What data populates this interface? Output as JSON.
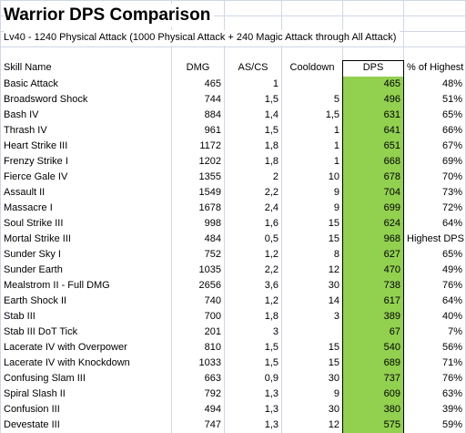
{
  "title": "Warrior DPS Comparison",
  "subtitle": "Lv40 - 1240 Physical Attack (1000 Physical Attack + 240 Magic Attack through All Attack)",
  "columns": {
    "skill": "Skill Name",
    "dmg": "DMG",
    "ascs": "AS/CS",
    "cooldown": "Cooldown",
    "dps": "DPS",
    "pct": "% of Highest"
  },
  "highlight_color": "#92d050",
  "rows": [
    {
      "skill": "Basic Attack",
      "dmg": "465",
      "ascs": "1",
      "cooldown": "",
      "dps": "465",
      "pct": "48%"
    },
    {
      "skill": "Broadsword Shock",
      "dmg": "744",
      "ascs": "1,5",
      "cooldown": "5",
      "dps": "496",
      "pct": "51%"
    },
    {
      "skill": "Bash IV",
      "dmg": "884",
      "ascs": "1,4",
      "cooldown": "1,5",
      "dps": "631",
      "pct": "65%"
    },
    {
      "skill": "Thrash IV",
      "dmg": "961",
      "ascs": "1,5",
      "cooldown": "1",
      "dps": "641",
      "pct": "66%"
    },
    {
      "skill": "Heart Strike III",
      "dmg": "1172",
      "ascs": "1,8",
      "cooldown": "1",
      "dps": "651",
      "pct": "67%"
    },
    {
      "skill": "Frenzy Strike I",
      "dmg": "1202",
      "ascs": "1,8",
      "cooldown": "1",
      "dps": "668",
      "pct": "69%"
    },
    {
      "skill": "Fierce Gale IV",
      "dmg": "1355",
      "ascs": "2",
      "cooldown": "10",
      "dps": "678",
      "pct": "70%"
    },
    {
      "skill": "Assault II",
      "dmg": "1549",
      "ascs": "2,2",
      "cooldown": "9",
      "dps": "704",
      "pct": "73%"
    },
    {
      "skill": "Massacre I",
      "dmg": "1678",
      "ascs": "2,4",
      "cooldown": "9",
      "dps": "699",
      "pct": "72%"
    },
    {
      "skill": "Soul Strike III",
      "dmg": "998",
      "ascs": "1,6",
      "cooldown": "15",
      "dps": "624",
      "pct": "64%"
    },
    {
      "skill": "Mortal Strike III",
      "dmg": "484",
      "ascs": "0,5",
      "cooldown": "15",
      "dps": "968",
      "pct": "Highest DPS"
    },
    {
      "skill": "Sunder Sky I",
      "dmg": "752",
      "ascs": "1,2",
      "cooldown": "8",
      "dps": "627",
      "pct": "65%"
    },
    {
      "skill": "Sunder Earth",
      "dmg": "1035",
      "ascs": "2,2",
      "cooldown": "12",
      "dps": "470",
      "pct": "49%"
    },
    {
      "skill": "Mealstrom II - Full DMG",
      "dmg": "2656",
      "ascs": "3,6",
      "cooldown": "30",
      "dps": "738",
      "pct": "76%"
    },
    {
      "skill": "Earth Shock II",
      "dmg": "740",
      "ascs": "1,2",
      "cooldown": "14",
      "dps": "617",
      "pct": "64%"
    },
    {
      "skill": "Stab III",
      "dmg": "700",
      "ascs": "1,8",
      "cooldown": "3",
      "dps": "389",
      "pct": "40%"
    },
    {
      "skill": "Stab III DoT Tick",
      "dmg": "201",
      "ascs": "3",
      "cooldown": "",
      "dps": "67",
      "pct": "7%"
    },
    {
      "skill": "Lacerate IV with Overpower",
      "dmg": "810",
      "ascs": "1,5",
      "cooldown": "15",
      "dps": "540",
      "pct": "56%"
    },
    {
      "skill": "Lacerate IV with Knockdown",
      "dmg": "1033",
      "ascs": "1,5",
      "cooldown": "15",
      "dps": "689",
      "pct": "71%"
    },
    {
      "skill": "Confusing Slam III",
      "dmg": "663",
      "ascs": "0,9",
      "cooldown": "30",
      "dps": "737",
      "pct": "76%"
    },
    {
      "skill": "Spiral Slash II",
      "dmg": "792",
      "ascs": "1,3",
      "cooldown": "9",
      "dps": "609",
      "pct": "63%"
    },
    {
      "skill": "Confusion III",
      "dmg": "494",
      "ascs": "1,3",
      "cooldown": "30",
      "dps": "380",
      "pct": "39%"
    },
    {
      "skill": "Devestate III",
      "dmg": "747",
      "ascs": "1,3",
      "cooldown": "12",
      "dps": "575",
      "pct": "59%"
    }
  ]
}
